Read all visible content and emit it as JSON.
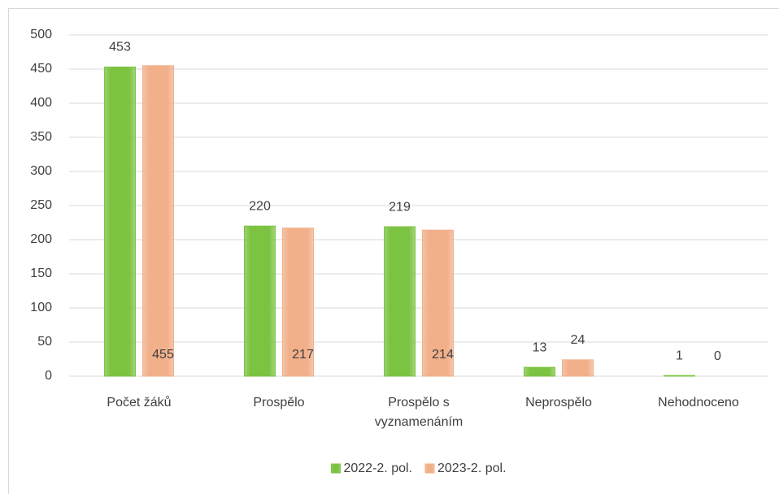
{
  "chart_data": {
    "type": "bar",
    "categories": [
      "Počet žáků",
      "Prospělo",
      "Prospělo s vyznamenáním",
      "Neprospělo",
      "Nehodnoceno"
    ],
    "series": [
      {
        "name": "2022-2. pol.",
        "color": "#7cc342",
        "values": [
          453,
          220,
          219,
          13,
          1
        ]
      },
      {
        "name": "2023-2. pol.",
        "color": "#f2b08a",
        "values": [
          455,
          217,
          214,
          24,
          0
        ]
      }
    ],
    "ylim": [
      0,
      500
    ],
    "yticks": [
      0,
      50,
      100,
      150,
      200,
      250,
      300,
      350,
      400,
      450,
      500
    ],
    "grid": true,
    "legend": "bottom"
  }
}
